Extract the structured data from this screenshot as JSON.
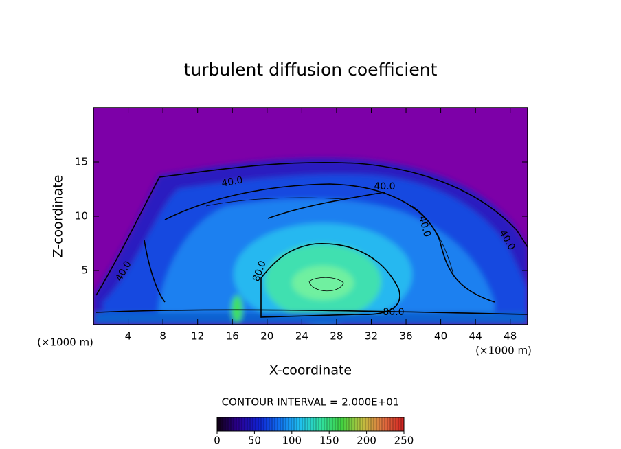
{
  "chart_data": {
    "type": "contour",
    "title": "turbulent diffusion coefficient",
    "x_label": "X-coordinate",
    "y_label": "Z-coordinate",
    "x_unit_label": "(×1000 m)",
    "xlim": [
      0,
      50
    ],
    "xticks": [
      4,
      8,
      12,
      16,
      20,
      24,
      28,
      32,
      36,
      40,
      44,
      48
    ],
    "ylim": [
      0,
      20
    ],
    "yticks": [
      5,
      10,
      15
    ],
    "contour_interval_label": "CONTOUR INTERVAL = 2.000E+01",
    "contour_labels": [
      "40.0",
      "40.0",
      "40.0",
      "40.0",
      "40.0",
      "80.0",
      "80.0"
    ],
    "colorbar_lim": [
      0,
      250
    ],
    "colorbar_ticks": [
      0,
      50,
      100,
      150,
      200,
      250
    ],
    "colormap": [
      "#100010",
      "#2a0090",
      "#1020d0",
      "#1070f0",
      "#20c0f0",
      "#30e0a0",
      "#40d040",
      "#c0c040",
      "#e07040",
      "#d02020"
    ]
  }
}
